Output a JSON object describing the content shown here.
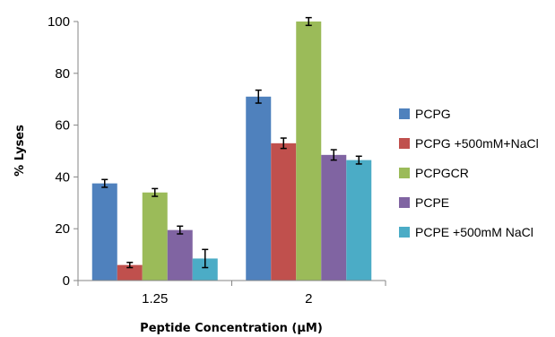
{
  "chart_data": {
    "type": "bar",
    "xlabel": "Peptide Concentration (µM)",
    "ylabel": "% Lyses",
    "categories": [
      "1.25",
      "2"
    ],
    "ylim": [
      0,
      100
    ],
    "yticks": [
      "0",
      "20",
      "40",
      "60",
      "80",
      "100"
    ],
    "grid": false,
    "legend_position": "right",
    "series": [
      {
        "name": "PCPG",
        "color": "#4f81bd",
        "values": [
          37.5,
          71
        ],
        "errors": [
          1.5,
          2.5
        ]
      },
      {
        "name": "PCPG +500mM+NaCl",
        "color": "#c0504d",
        "values": [
          6,
          53
        ],
        "errors": [
          1,
          2
        ]
      },
      {
        "name": "PCPGCR",
        "color": "#9bbb59",
        "values": [
          34,
          100
        ],
        "errors": [
          1.5,
          1.5
        ]
      },
      {
        "name": "PCPE",
        "color": "#8064a2",
        "values": [
          19.5,
          48.5
        ],
        "errors": [
          1.5,
          2
        ]
      },
      {
        "name": "PCPE +500mM NaCl",
        "color": "#4bacc6",
        "values": [
          8.5,
          46.5
        ],
        "errors": [
          3.5,
          1.5
        ]
      }
    ]
  }
}
